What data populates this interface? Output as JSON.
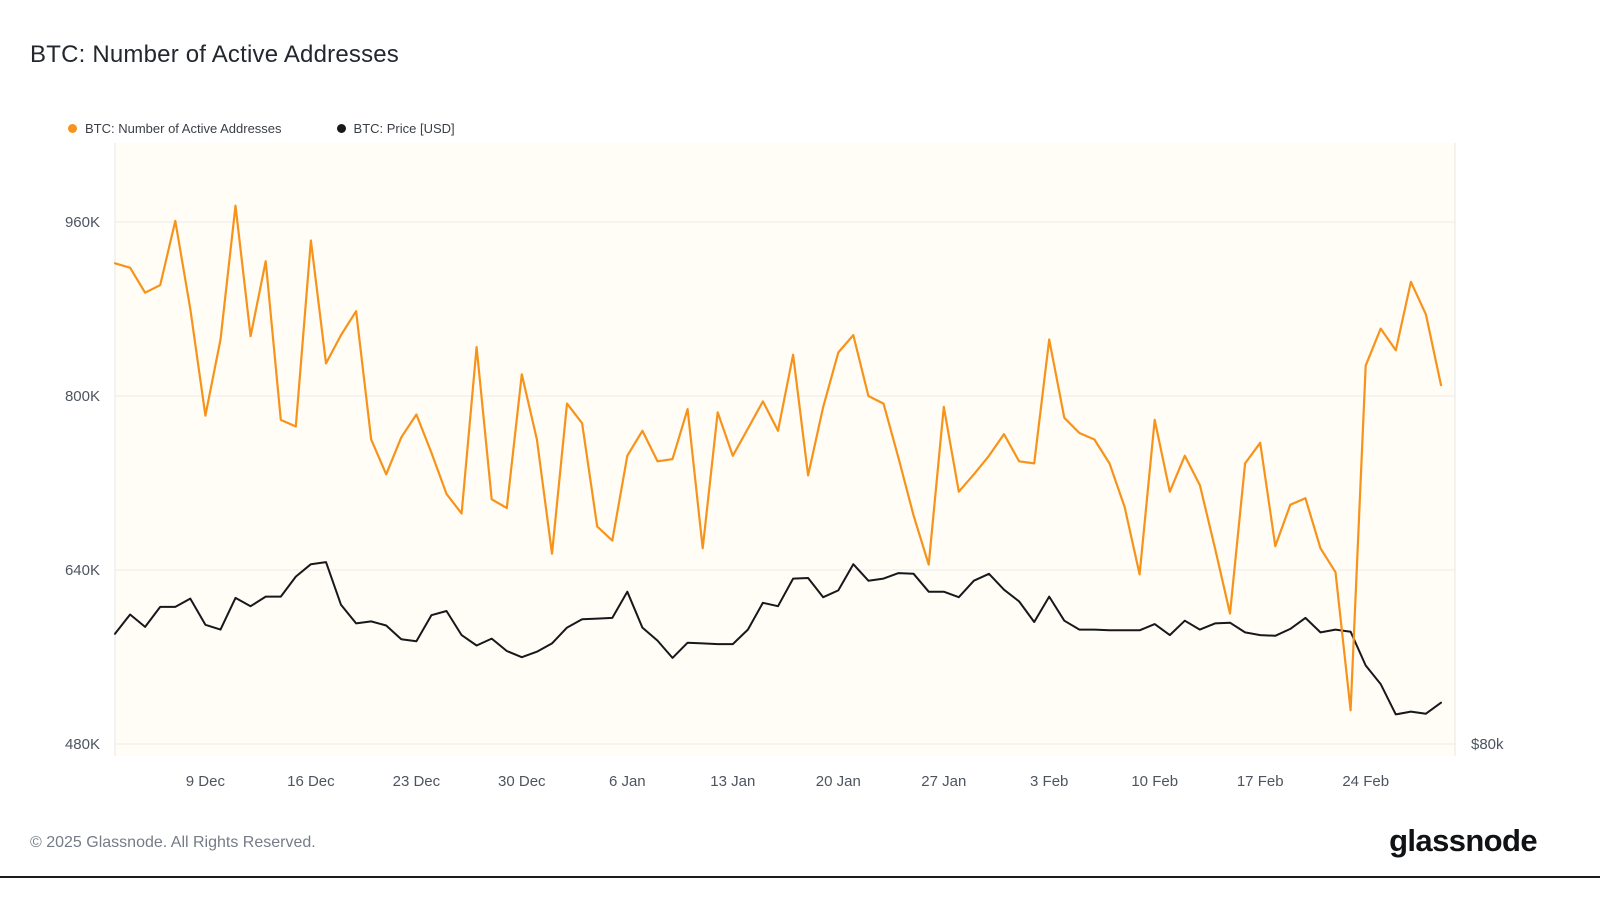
{
  "page": {
    "title": "BTC: Number of Active Addresses",
    "footer_copyright": "© 2025 Glassnode. All Rights Reserved.",
    "brand": "glassnode"
  },
  "legend": [
    {
      "label": "BTC: Number of Active Addresses",
      "color": "#f7931a"
    },
    {
      "label": "BTC: Price [USD]",
      "color": "#16181b"
    }
  ],
  "chart_data": {
    "type": "line",
    "title": "BTC: Number of Active Addresses",
    "grid": "horizontal",
    "legend_position": "top-left",
    "plot_background": "#fffdf6",
    "dates": [
      "3 Dec",
      "4 Dec",
      "5 Dec",
      "6 Dec",
      "7 Dec",
      "8 Dec",
      "9 Dec",
      "10 Dec",
      "11 Dec",
      "12 Dec",
      "13 Dec",
      "14 Dec",
      "15 Dec",
      "16 Dec",
      "17 Dec",
      "18 Dec",
      "19 Dec",
      "20 Dec",
      "21 Dec",
      "22 Dec",
      "23 Dec",
      "24 Dec",
      "25 Dec",
      "26 Dec",
      "27 Dec",
      "28 Dec",
      "29 Dec",
      "30 Dec",
      "31 Dec",
      "1 Jan",
      "2 Jan",
      "3 Jan",
      "4 Jan",
      "5 Jan",
      "6 Jan",
      "7 Jan",
      "8 Jan",
      "9 Jan",
      "10 Jan",
      "11 Jan",
      "12 Jan",
      "13 Jan",
      "14 Jan",
      "15 Jan",
      "16 Jan",
      "17 Jan",
      "18 Jan",
      "19 Jan",
      "20 Jan",
      "21 Jan",
      "22 Jan",
      "23 Jan",
      "24 Jan",
      "25 Jan",
      "26 Jan",
      "27 Jan",
      "28 Jan",
      "29 Jan",
      "30 Jan",
      "31 Jan",
      "1 Feb",
      "2 Feb",
      "3 Feb",
      "4 Feb",
      "5 Feb",
      "6 Feb",
      "7 Feb",
      "8 Feb",
      "9 Feb",
      "10 Feb",
      "11 Feb",
      "12 Feb",
      "13 Feb",
      "14 Feb",
      "15 Feb",
      "16 Feb",
      "17 Feb",
      "18 Feb",
      "19 Feb",
      "20 Feb",
      "21 Feb",
      "22 Feb",
      "23 Feb",
      "24 Feb",
      "25 Feb",
      "26 Feb",
      "27 Feb",
      "28 Feb",
      "1 Mar"
    ],
    "series": [
      {
        "name": "BTC: Number of Active Addresses",
        "axis": "left",
        "color": "#f7931a",
        "unit": "thousand addresses",
        "values": [
          922,
          918,
          895,
          902,
          961,
          880,
          782,
          852,
          975,
          855,
          924,
          778,
          772,
          943,
          830,
          856,
          878,
          760,
          728,
          762,
          783,
          748,
          710,
          692,
          845,
          705,
          697,
          820,
          760,
          655,
          793,
          775,
          680,
          667,
          745,
          768,
          740,
          742,
          788,
          660,
          785,
          745,
          770,
          795,
          768,
          838,
          727,
          790,
          840,
          856,
          800,
          793,
          743,
          690,
          645,
          790,
          712,
          728,
          745,
          765,
          740,
          738,
          852,
          780,
          766,
          760,
          738,
          698,
          636,
          778,
          712,
          745,
          718,
          660,
          600,
          738,
          757,
          662,
          700,
          706,
          660,
          638,
          511,
          828,
          862,
          842,
          905,
          875,
          810
        ]
      },
      {
        "name": "BTC: Price [USD]",
        "axis": "right",
        "color": "#16181b",
        "unit": "thousand USD",
        "values": [
          96.0,
          98.8,
          97.0,
          99.9,
          99.9,
          101.1,
          97.3,
          96.6,
          101.2,
          100.0,
          101.4,
          101.4,
          104.3,
          106.1,
          106.4,
          100.2,
          97.5,
          97.8,
          97.2,
          95.2,
          94.9,
          98.7,
          99.3,
          95.8,
          94.3,
          95.3,
          93.5,
          92.6,
          93.4,
          94.6,
          96.9,
          98.1,
          98.2,
          98.3,
          102.1,
          96.9,
          95.0,
          92.5,
          94.7,
          94.6,
          94.5,
          94.5,
          96.6,
          100.5,
          100.0,
          104.0,
          104.1,
          101.3,
          102.3,
          106.1,
          103.7,
          104.0,
          104.8,
          104.7,
          102.1,
          102.1,
          101.3,
          103.7,
          104.7,
          102.4,
          100.7,
          97.7,
          101.4,
          97.9,
          96.6,
          96.6,
          96.5,
          96.5,
          96.5,
          97.4,
          95.8,
          97.9,
          96.6,
          97.5,
          97.6,
          96.2,
          95.8,
          95.7,
          96.7,
          98.3,
          96.2,
          96.6,
          96.3,
          91.4,
          88.7,
          84.3,
          84.7,
          84.4,
          86.0
        ]
      }
    ],
    "left_axis": {
      "tick_labels": [
        "480K",
        "640K",
        "800K",
        "960K"
      ],
      "tick_values": [
        480,
        640,
        800,
        960
      ],
      "approx_range": [
        470,
        1030
      ]
    },
    "right_axis": {
      "tick_labels": [
        "$80k"
      ],
      "tick_values": [
        80
      ]
    },
    "x_ticks": [
      {
        "label": "9 Dec",
        "i": 6
      },
      {
        "label": "16 Dec",
        "i": 13
      },
      {
        "label": "23 Dec",
        "i": 20
      },
      {
        "label": "30 Dec",
        "i": 27
      },
      {
        "label": "6 Jan",
        "i": 34
      },
      {
        "label": "13 Jan",
        "i": 41
      },
      {
        "label": "20 Jan",
        "i": 48
      },
      {
        "label": "27 Jan",
        "i": 55
      },
      {
        "label": "3 Feb",
        "i": 62
      },
      {
        "label": "10 Feb",
        "i": 69
      },
      {
        "label": "17 Feb",
        "i": 76
      },
      {
        "label": "24 Feb",
        "i": 83
      }
    ]
  }
}
